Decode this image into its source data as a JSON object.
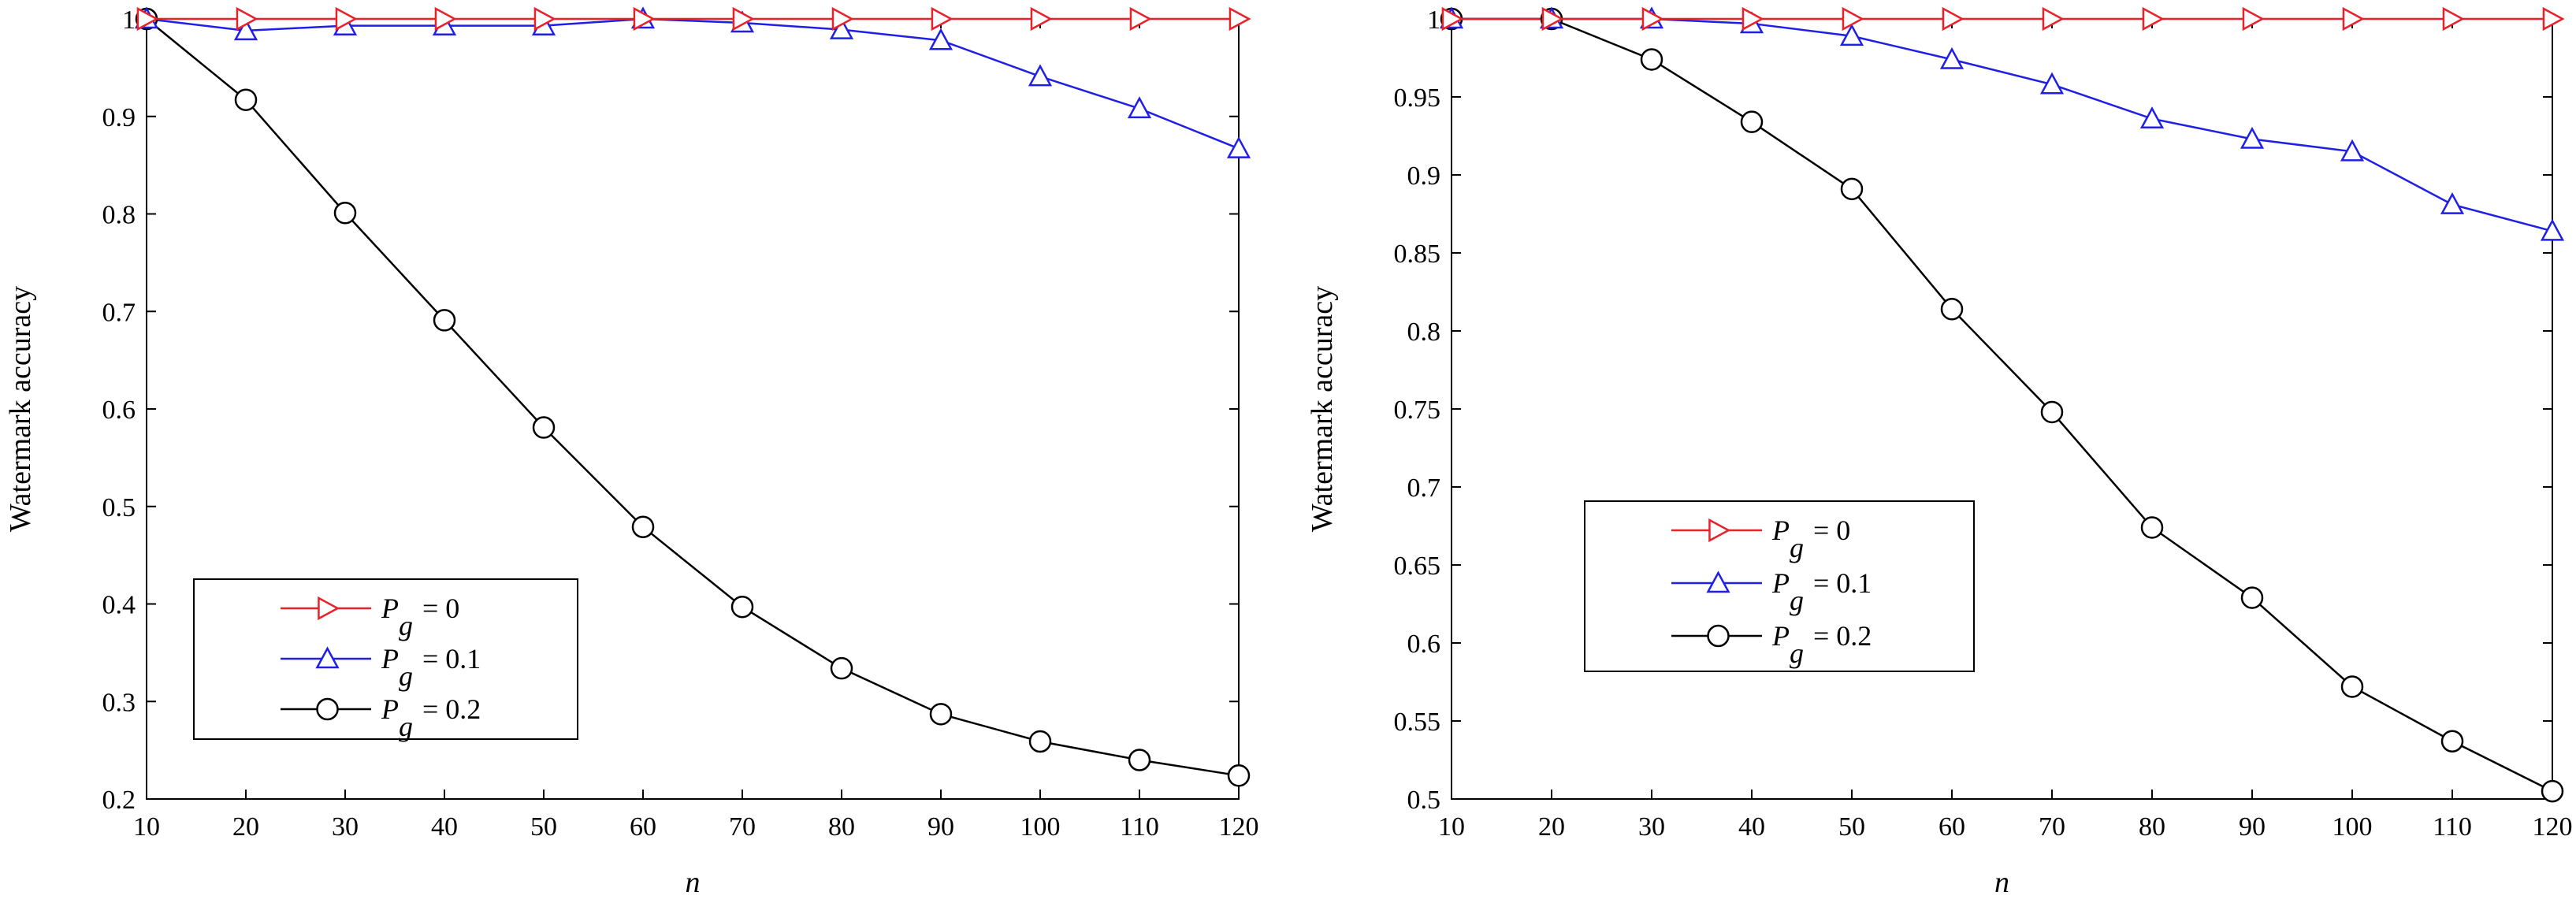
{
  "chart_data": [
    {
      "type": "line",
      "title": "",
      "xlabel": "n",
      "ylabel": "Watermark accuracy",
      "x": [
        10,
        20,
        30,
        40,
        50,
        60,
        70,
        80,
        90,
        100,
        110,
        120
      ],
      "xlim": [
        10,
        120
      ],
      "ylim": [
        0.2,
        1.0
      ],
      "xticks": [
        "10",
        "20",
        "30",
        "40",
        "50",
        "60",
        "70",
        "80",
        "90",
        "100",
        "110",
        "120"
      ],
      "yticks": [
        "0.2",
        "0.3",
        "0.4",
        "0.5",
        "0.6",
        "0.7",
        "0.8",
        "0.9",
        "1"
      ],
      "grid": false,
      "legend_position": "lower-left",
      "series": [
        {
          "name": "Pg = 0",
          "label_main": "P",
          "label_sub": "g",
          "label_rest": "= 0",
          "color": "#e8212a",
          "marker": "triangle-right",
          "values": [
            1,
            1,
            1,
            1,
            1,
            1,
            1,
            1,
            1,
            1,
            1,
            1
          ]
        },
        {
          "name": "Pg = 0.1",
          "label_main": "P",
          "label_sub": "g",
          "label_rest": "= 0.1",
          "color": "#1f1fe6",
          "marker": "triangle-up",
          "values": [
            1.0,
            0.988,
            0.993,
            0.993,
            0.993,
            1.0,
            0.996,
            0.989,
            0.978,
            0.941,
            0.908,
            0.867
          ]
        },
        {
          "name": "Pg = 0.2",
          "label_main": "P",
          "label_sub": "g",
          "label_rest": "= 0.2",
          "color": "#000000",
          "marker": "circle",
          "values": [
            1.0,
            0.917,
            0.801,
            0.691,
            0.581,
            0.479,
            0.397,
            0.334,
            0.287,
            0.259,
            0.24,
            0.224
          ]
        }
      ]
    },
    {
      "type": "line",
      "title": "",
      "xlabel": "n",
      "ylabel": "Watermark accuracy",
      "x": [
        10,
        20,
        30,
        40,
        50,
        60,
        70,
        80,
        90,
        100,
        110,
        120
      ],
      "xlim": [
        10,
        120
      ],
      "ylim": [
        0.5,
        1.0
      ],
      "xticks": [
        "10",
        "20",
        "30",
        "40",
        "50",
        "60",
        "70",
        "80",
        "90",
        "100",
        "110",
        "120"
      ],
      "yticks": [
        "0.5",
        "0.55",
        "0.6",
        "0.65",
        "0.7",
        "0.75",
        "0.8",
        "0.85",
        "0.9",
        "0.95",
        "1"
      ],
      "grid": false,
      "legend_position": "center-left",
      "series": [
        {
          "name": "Pg = 0",
          "label_main": "P",
          "label_sub": "g",
          "label_rest": "= 0",
          "color": "#e8212a",
          "marker": "triangle-right",
          "values": [
            1,
            1,
            1,
            1,
            1,
            1,
            1,
            1,
            1,
            1,
            1,
            1
          ]
        },
        {
          "name": "Pg = 0.1",
          "label_main": "P",
          "label_sub": "g",
          "label_rest": "= 0.1",
          "color": "#1f1fe6",
          "marker": "triangle-up",
          "values": [
            1.0,
            1.0,
            1.0,
            0.997,
            0.989,
            0.974,
            0.958,
            0.936,
            0.923,
            0.915,
            0.881,
            0.864
          ]
        },
        {
          "name": "Pg = 0.2",
          "label_main": "P",
          "label_sub": "g",
          "label_rest": "= 0.2",
          "color": "#000000",
          "marker": "circle",
          "values": [
            1.0,
            1.0,
            0.974,
            0.934,
            0.891,
            0.814,
            0.748,
            0.674,
            0.629,
            0.572,
            0.537,
            0.505
          ]
        }
      ]
    }
  ]
}
